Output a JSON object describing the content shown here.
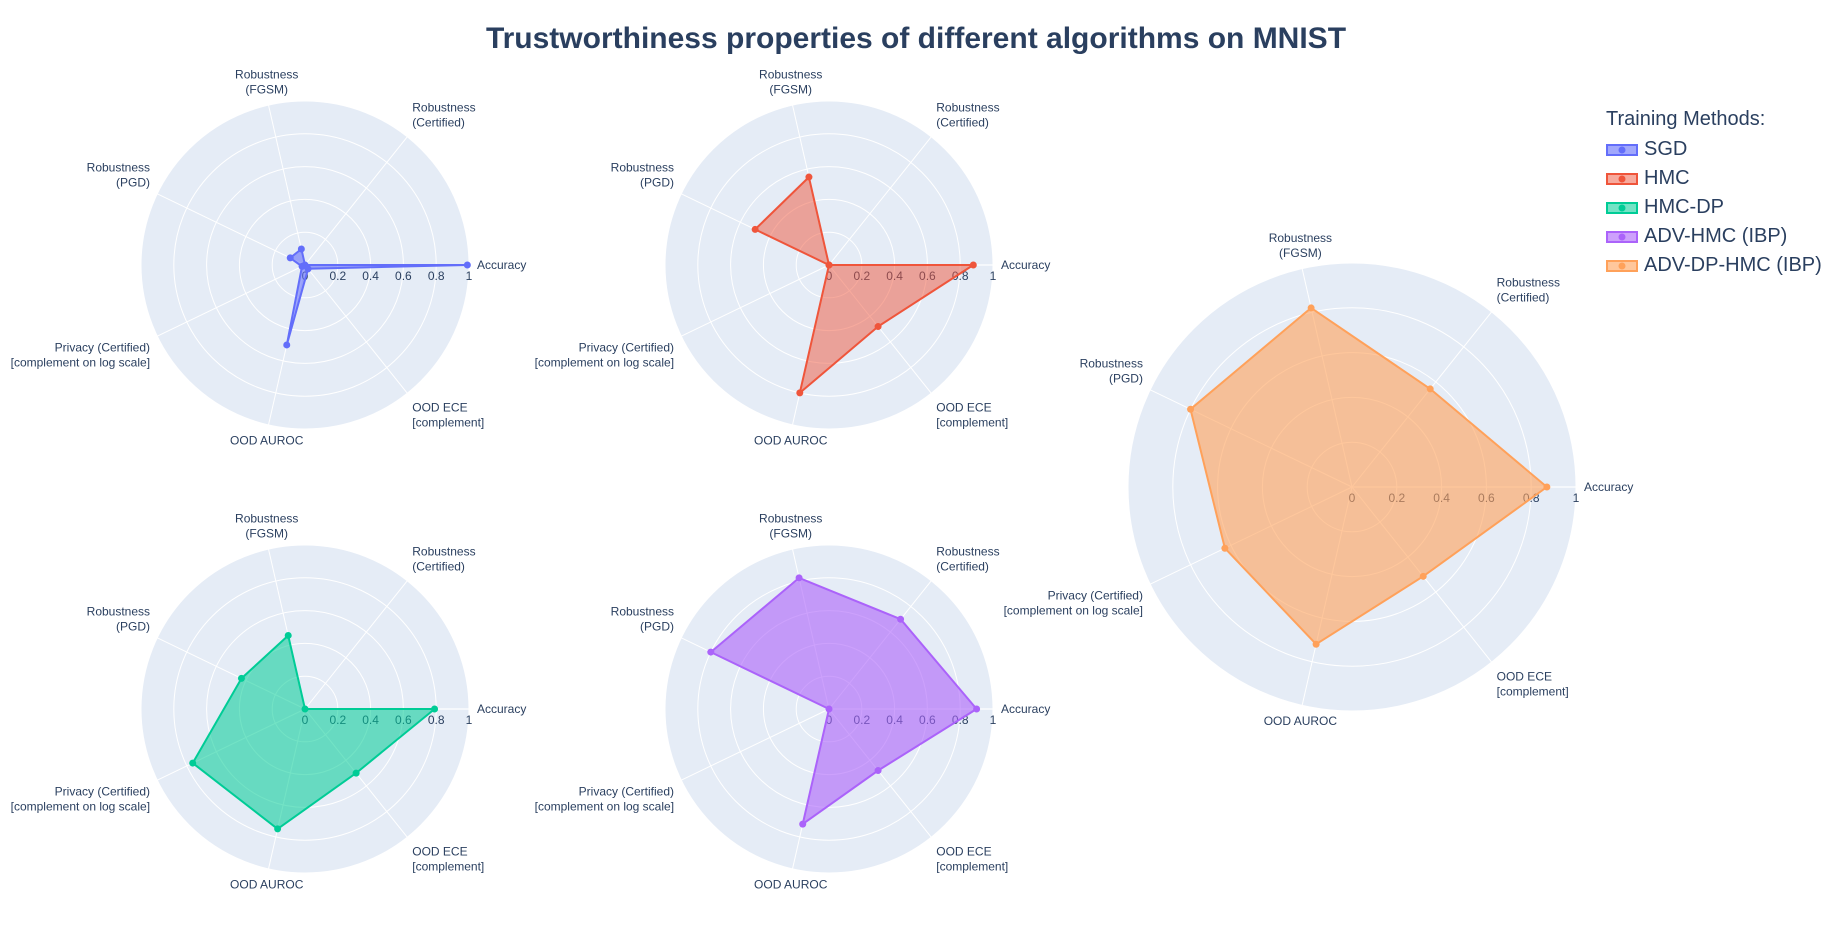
{
  "title": "Trustworthiness properties of different algorithms on MNIST",
  "legend": {
    "title": "Training Methods:"
  },
  "chart_data": {
    "type": "radar",
    "axes": [
      "Accuracy",
      "Robustness (Certified)",
      "Robustness (FGSM)",
      "Robustness (PGD)",
      "Privacy (Certified) [complement on log scale]",
      "OOD AUROC",
      "OOD ECE [complement]"
    ],
    "axis_display": [
      [
        "Accuracy"
      ],
      [
        "Robustness",
        "(Certified)"
      ],
      [
        "Robustness",
        "(FGSM)"
      ],
      [
        "Robustness",
        "(PGD)"
      ],
      [
        "Privacy (Certified)",
        "[complement on log scale]"
      ],
      [
        "OOD AUROC"
      ],
      [
        "OOD ECE",
        "[complement]"
      ]
    ],
    "radial_ticks": [
      "0",
      "0.2",
      "0.4",
      "0.6",
      "0.8",
      "1"
    ],
    "radial_range": [
      0,
      1
    ],
    "legend_position": "top-right",
    "series": [
      {
        "name": "SGD",
        "color": "#636efa",
        "fill": "rgba(99,110,250,0.6)",
        "values": [
          0.99,
          0.0,
          0.1,
          0.1,
          0.02,
          0.5,
          0.03
        ]
      },
      {
        "name": "HMC",
        "color": "#ef553b",
        "fill": "rgba(239,85,59,0.5)",
        "values": [
          0.88,
          0.0,
          0.55,
          0.5,
          0.0,
          0.8,
          0.48
        ]
      },
      {
        "name": "HMC-DP",
        "color": "#00cc96",
        "fill": "rgba(0,204,150,0.55)",
        "values": [
          0.79,
          0.0,
          0.46,
          0.43,
          0.76,
          0.75,
          0.5
        ]
      },
      {
        "name": "ADV-HMC (IBP)",
        "color": "#ab63fa",
        "fill": "rgba(171,99,250,0.6)",
        "values": [
          0.9,
          0.7,
          0.82,
          0.8,
          0.0,
          0.72,
          0.48
        ]
      },
      {
        "name": "ADV-DP-HMC (IBP)",
        "color": "#fFA15A",
        "fill": "rgba(255,161,90,0.6)",
        "values": [
          0.87,
          0.56,
          0.82,
          0.8,
          0.63,
          0.72,
          0.51
        ]
      }
    ]
  }
}
